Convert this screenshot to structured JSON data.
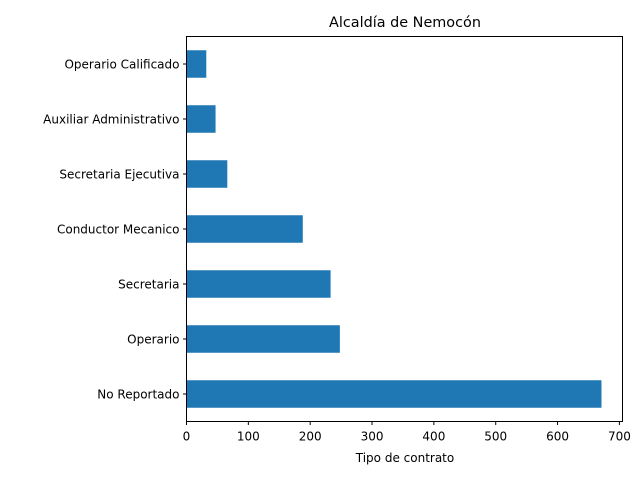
{
  "chart_data": {
    "type": "bar",
    "orientation": "horizontal",
    "title": "Alcaldía de Nemocón",
    "xlabel": "Tipo de contrato",
    "ylabel": "",
    "categories": [
      "No Reportado",
      "Operario",
      "Secretaria",
      "Conductor Mecanico",
      "Secretaria Ejecutiva",
      "Auxiliar Administrativo",
      "Operario Calificado"
    ],
    "values": [
      671,
      248,
      233,
      188,
      66,
      47,
      32
    ],
    "xlim": [
      0,
      705
    ],
    "xticks": [
      0,
      100,
      200,
      300,
      400,
      500,
      600,
      700
    ],
    "bar_color": "#1f77b4",
    "grid": false,
    "legend": "none"
  }
}
